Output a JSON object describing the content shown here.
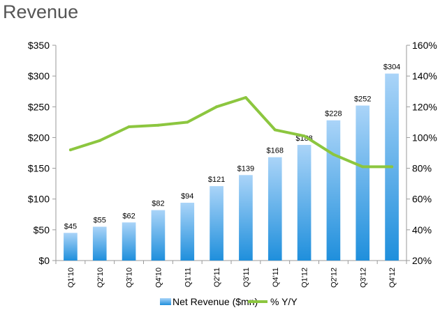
{
  "page": {
    "title": "Revenue"
  },
  "chart_data": {
    "type": "bar",
    "title": "",
    "categories": [
      "Q1'10",
      "Q2'10",
      "Q3'10",
      "Q4'10",
      "Q1'11",
      "Q2'11",
      "Q3'11",
      "Q4'11",
      "Q1'12",
      "Q2'12",
      "Q3'12",
      "Q4'12"
    ],
    "series": [
      {
        "name": "Net Revenue ($mn)",
        "kind": "bar",
        "axis": "left",
        "values": [
          45,
          55,
          62,
          82,
          94,
          121,
          139,
          168,
          188,
          228,
          252,
          304
        ],
        "data_labels": [
          "$45",
          "$55",
          "$62",
          "$82",
          "$94",
          "$121",
          "$139",
          "$168",
          "$188",
          "$228",
          "$252",
          "$304"
        ],
        "color_top": "#aad4f8",
        "color_bottom": "#1f8fdc"
      },
      {
        "name": "% Y/Y",
        "kind": "line",
        "axis": "right",
        "values": [
          92,
          98,
          107,
          108,
          110,
          120,
          126,
          105,
          101,
          89,
          81,
          81
        ],
        "color": "#8cc63f"
      }
    ],
    "y_left": {
      "min": 0,
      "max": 350,
      "step": 50,
      "ticks": [
        "$0",
        "$50",
        "$100",
        "$150",
        "$200",
        "$250",
        "$300",
        "$350"
      ]
    },
    "y_right": {
      "min": 20,
      "max": 160,
      "step": 20,
      "ticks": [
        "20%",
        "40%",
        "60%",
        "80%",
        "100%",
        "120%",
        "140%",
        "160%"
      ]
    },
    "grid": false,
    "legend_position": "bottom"
  }
}
